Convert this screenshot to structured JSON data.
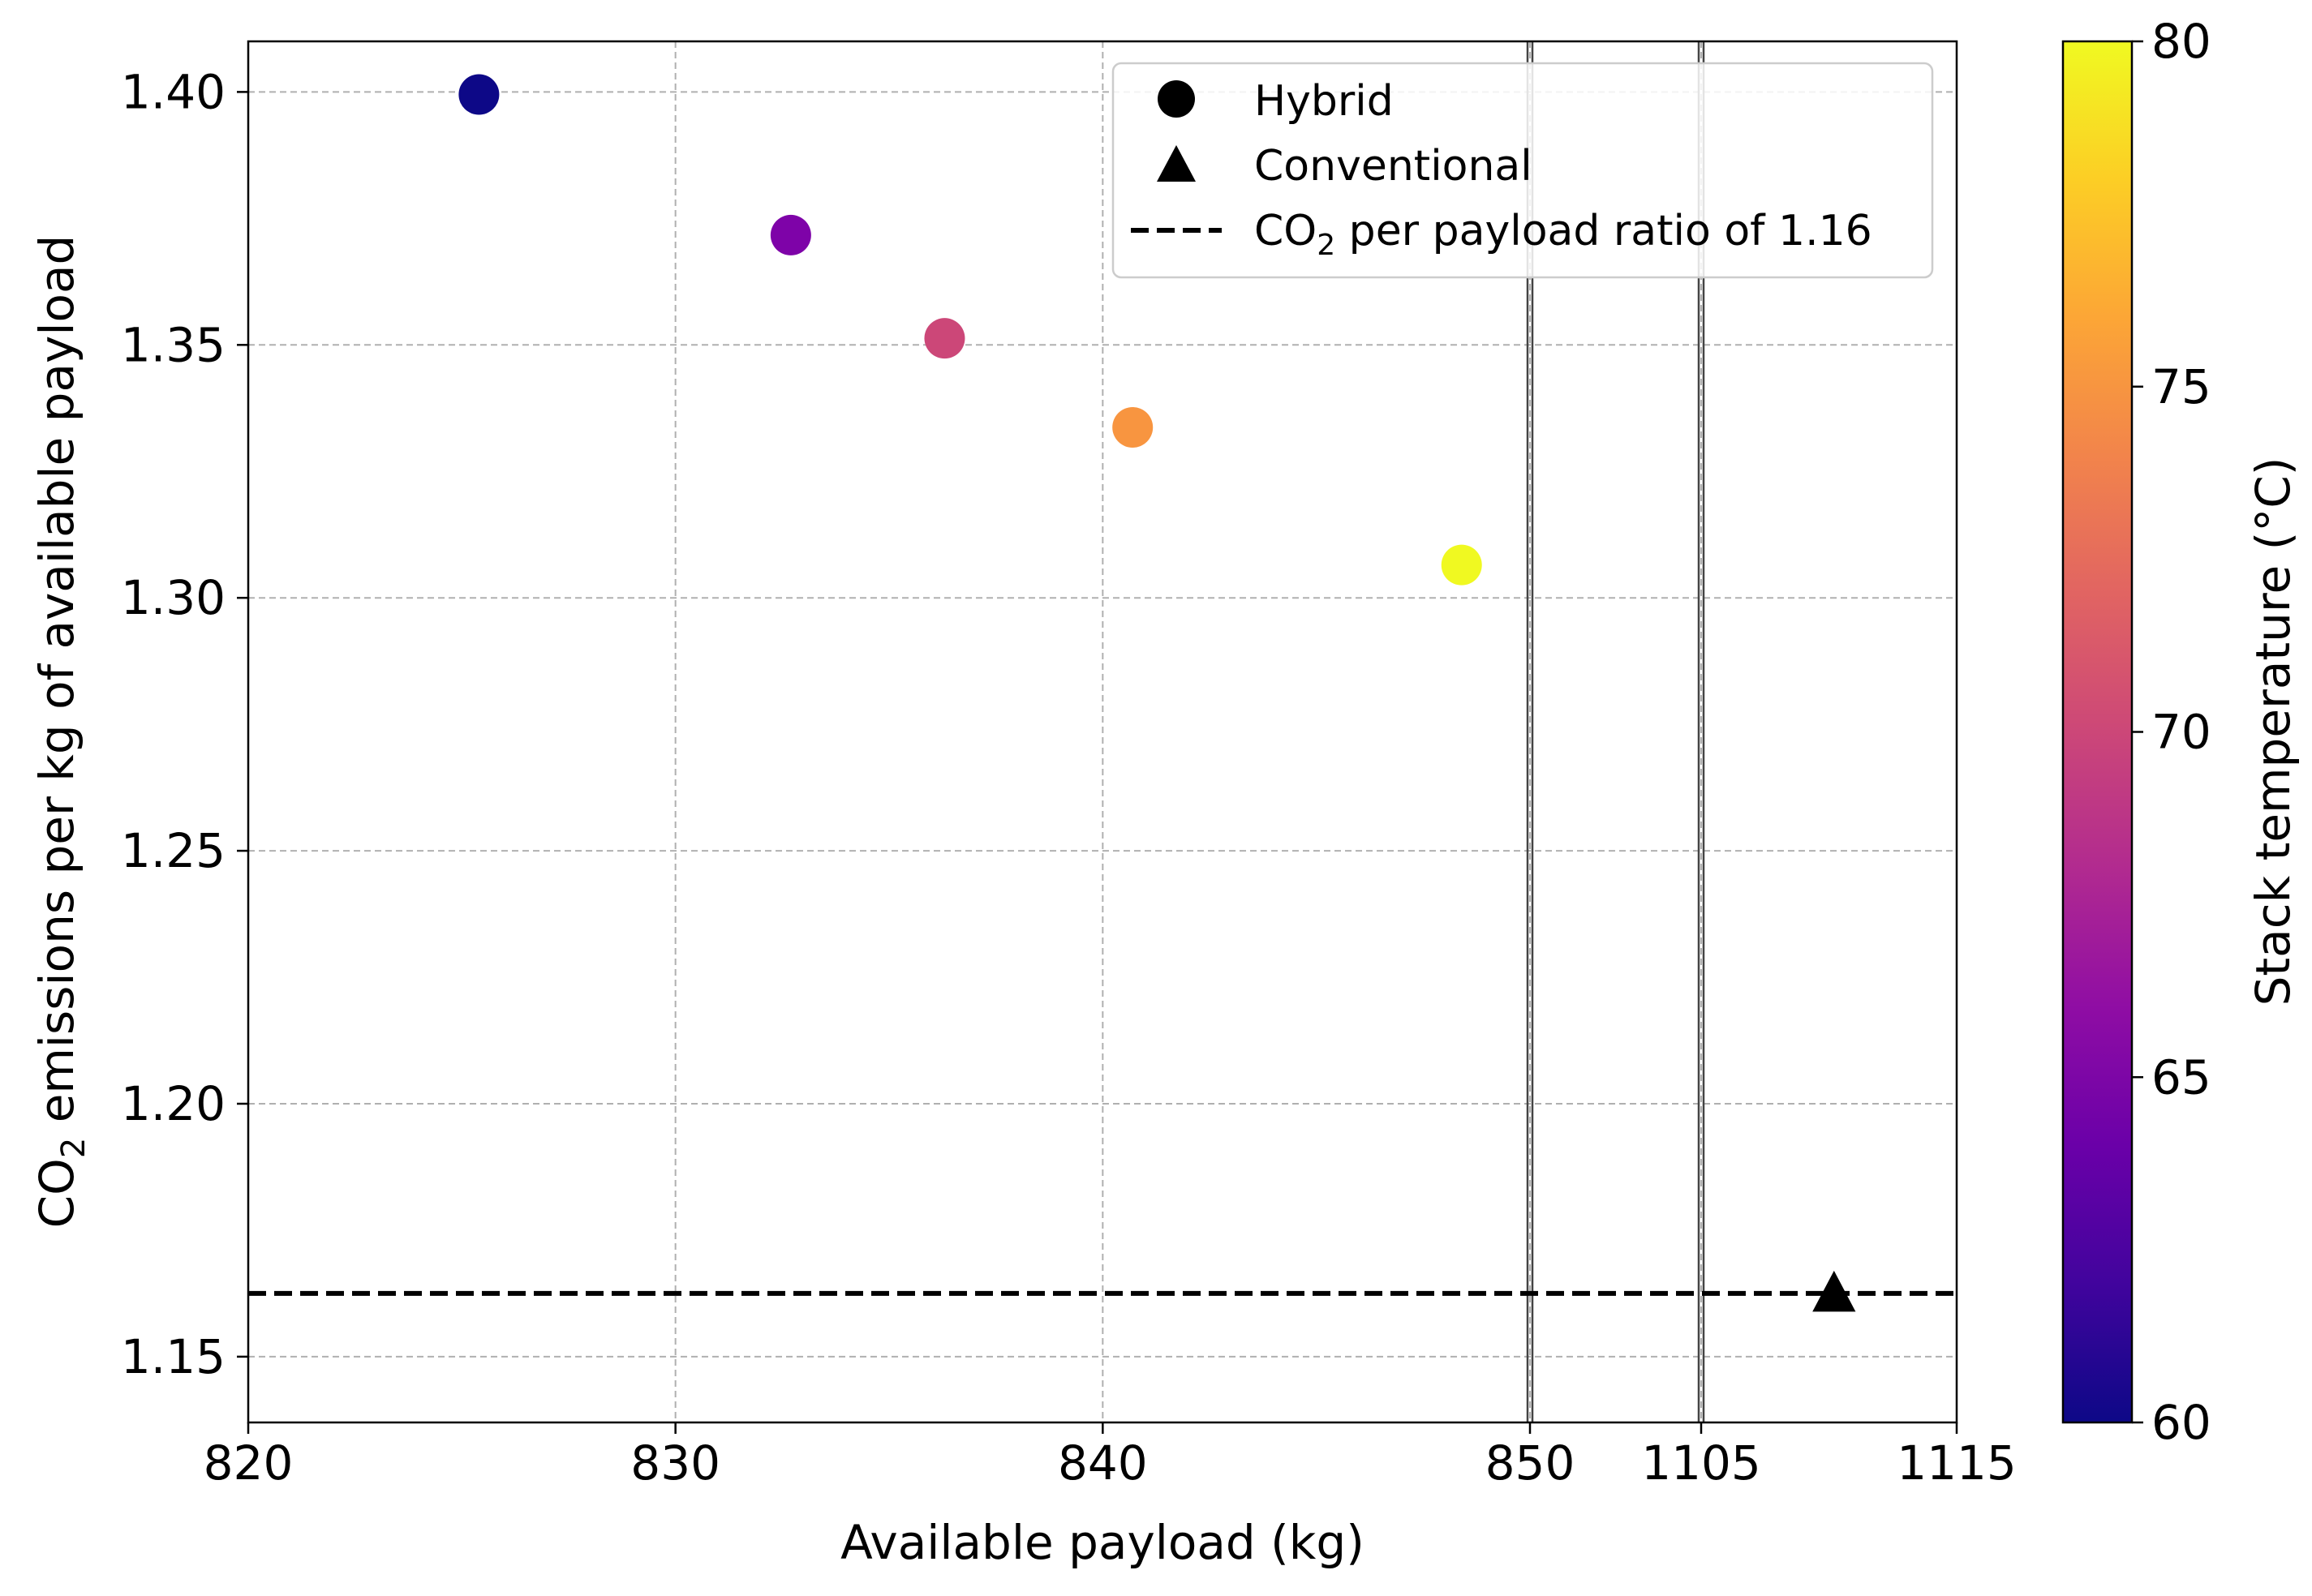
{
  "chart_data": {
    "type": "scatter",
    "xlabel": "Available payload (kg)",
    "ylabel_parts": [
      "CO",
      "2",
      " emissions per kg of available payload"
    ],
    "xaxis": {
      "broken": true,
      "segments": [
        {
          "range": [
            820,
            850
          ],
          "ticks": [
            820,
            830,
            840,
            850
          ]
        },
        {
          "range": [
            1105,
            1115
          ],
          "ticks": [
            1105,
            1115
          ]
        }
      ],
      "tick_labels": [
        "820",
        "830",
        "840",
        "850",
        "1105",
        "1115"
      ]
    },
    "ylim": [
      1.137,
      1.41
    ],
    "yticks": [
      1.15,
      1.2,
      1.25,
      1.3,
      1.35,
      1.4
    ],
    "ytick_labels": [
      "1.15",
      "1.20",
      "1.25",
      "1.30",
      "1.35",
      "1.40"
    ],
    "grid": true,
    "series": [
      {
        "name": "Hybrid",
        "marker": "circle",
        "points": [
          {
            "x": 825.4,
            "y": 1.3995,
            "stack_temp": 60,
            "color": "#0d0887"
          },
          {
            "x": 832.7,
            "y": 1.3717,
            "stack_temp": 65,
            "color": "#7e03a8"
          },
          {
            "x": 836.3,
            "y": 1.3513,
            "stack_temp": 70,
            "color": "#cc4778"
          },
          {
            "x": 840.7,
            "y": 1.3337,
            "stack_temp": 75,
            "color": "#f89540"
          },
          {
            "x": 848.4,
            "y": 1.3065,
            "stack_temp": 80,
            "color": "#f0f921"
          }
        ]
      },
      {
        "name": "Conventional",
        "marker": "triangle",
        "points": [
          {
            "x": 1110.2,
            "y": 1.1625,
            "color": "#000000"
          }
        ]
      }
    ],
    "reference_line": {
      "y": 1.1625,
      "style": "dashed",
      "color": "#000000"
    },
    "legend": {
      "position": "top-right",
      "entries": [
        {
          "label": "Hybrid",
          "marker": "circle"
        },
        {
          "label": "Conventional",
          "marker": "triangle"
        },
        {
          "label_parts": [
            "CO",
            "2",
            " per payload ratio of 1.16"
          ],
          "marker": "dashed-line"
        }
      ]
    },
    "colorbar": {
      "label": "Stack temperature (°C)",
      "range": [
        60,
        80
      ],
      "ticks": [
        60,
        65,
        70,
        75,
        80
      ],
      "tick_labels": [
        "60",
        "65",
        "70",
        "75",
        "80"
      ],
      "colormap": "plasma",
      "stops": [
        "#0d0887",
        "#41049d",
        "#6a00a8",
        "#8f0da4",
        "#b12a90",
        "#cc4778",
        "#e16462",
        "#f2844b",
        "#fca636",
        "#fcce25",
        "#f0f921"
      ]
    }
  }
}
